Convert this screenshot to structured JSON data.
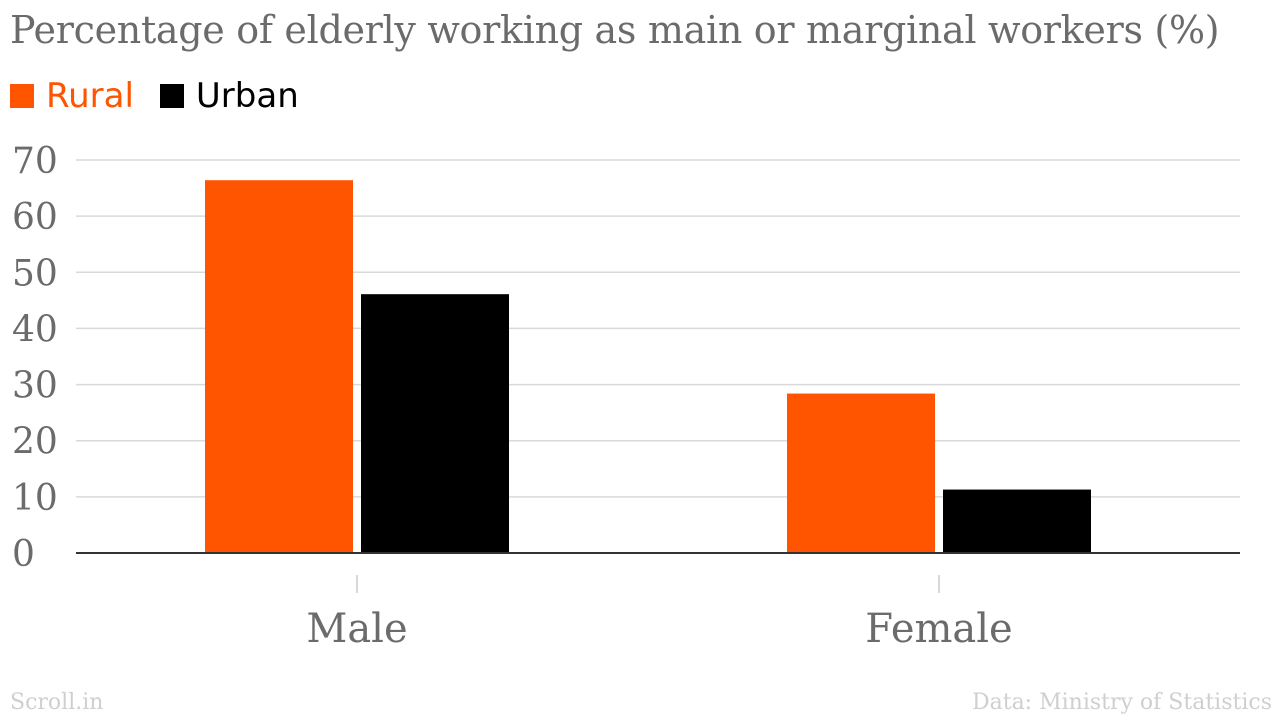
{
  "chart_data": {
    "type": "bar",
    "title": "Percentage of elderly working as main or marginal workers (%)",
    "categories": [
      "Male",
      "Female"
    ],
    "series": [
      {
        "name": "Rural",
        "color": "#ff5500",
        "values": [
          66.4,
          28.4
        ]
      },
      {
        "name": "Urban",
        "color": "#000000",
        "values": [
          46.1,
          11.3
        ]
      }
    ],
    "ylim": [
      0,
      70
    ],
    "yticks": [
      0,
      10,
      20,
      30,
      40,
      50,
      60,
      70
    ],
    "grid": true,
    "legend_position": "top-left"
  },
  "footer": {
    "source_left": "Scroll.in",
    "source_right": "Data: Ministry of Statistics"
  }
}
